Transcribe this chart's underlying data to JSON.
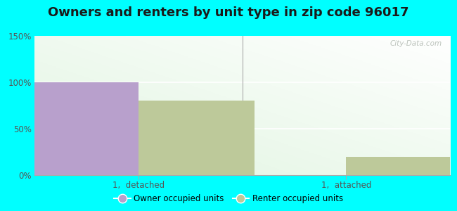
{
  "title": "Owners and renters by unit type in zip code 96017",
  "categories": [
    "1,  detached",
    "1,  attached"
  ],
  "owner_values": [
    100,
    0
  ],
  "renter_values": [
    80,
    20
  ],
  "owner_color": "#b8a0cc",
  "renter_color": "#bdc99a",
  "ylim": [
    0,
    150
  ],
  "yticks": [
    0,
    50,
    100,
    150
  ],
  "ytick_labels": [
    "0%",
    "50%",
    "100%",
    "150%"
  ],
  "legend_owner": "Owner occupied units",
  "legend_renter": "Renter occupied units",
  "bar_width": 0.28,
  "outer_bg": "#00ffff",
  "title_fontsize": 13,
  "watermark": "City-Data.com",
  "group_positions": [
    0.25,
    0.75
  ],
  "xlim": [
    0,
    1
  ]
}
